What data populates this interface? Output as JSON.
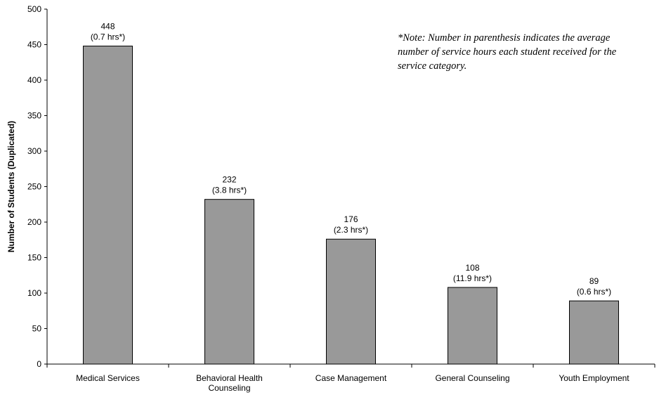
{
  "chart_data": {
    "type": "bar",
    "categories": [
      "Medical Services",
      "Behavioral Health Counseling",
      "Case Management",
      "General Counseling",
      "Youth Employment"
    ],
    "category_lines": [
      [
        "Medical Services"
      ],
      [
        "Behavioral Health",
        "Counseling"
      ],
      [
        "Case Management"
      ],
      [
        "General Counseling"
      ],
      [
        "Youth Employment"
      ]
    ],
    "values": [
      448,
      232,
      176,
      108,
      89
    ],
    "value_labels": [
      "448",
      "232",
      "176",
      "108",
      "89"
    ],
    "hours_labels": [
      "(0.7 hrs*)",
      "(3.8 hrs*)",
      "(2.3 hrs*)",
      "(11.9 hrs*)",
      "(0.6 hrs*)"
    ],
    "ylabel": "Number of Students (Duplicated)",
    "ylim": [
      0,
      500
    ],
    "yticks": [
      0,
      50,
      100,
      150,
      200,
      250,
      300,
      350,
      400,
      450,
      500
    ],
    "bar_color": "#999999",
    "grid": false,
    "note": "*Note: Number in parenthesis indicates the average number of service hours each student received for the service category."
  }
}
